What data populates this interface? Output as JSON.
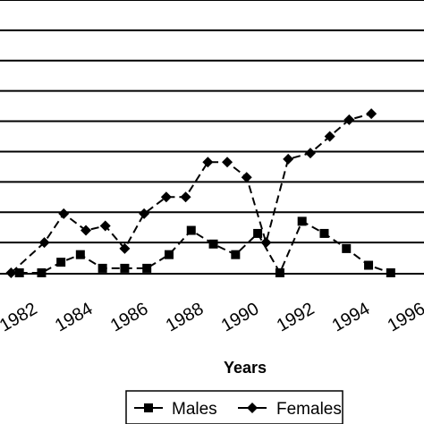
{
  "chart_data": {
    "type": "line",
    "xlabel": "Years",
    "ylabel": "",
    "title": "",
    "grid": true,
    "legend_position": "bottom",
    "x_tick_labels": [
      "1982",
      "1984",
      "1986",
      "1988",
      "1990",
      "1992",
      "1994",
      "1996"
    ],
    "xlim": [
      1981.3,
      1996.6
    ],
    "ylim": [
      0,
      18
    ],
    "series": [
      {
        "name": "Males",
        "marker": "square",
        "x": [
          1982,
          1982.8,
          1983.5,
          1984.2,
          1985,
          1985.8,
          1986.6,
          1987.4,
          1988.2,
          1989,
          1989.8,
          1990.6,
          1991.4,
          1992.2,
          1993,
          1993.8,
          1994.6,
          1995.4
        ],
        "values": [
          0,
          0,
          0.7,
          1.2,
          0.3,
          0.3,
          0.3,
          1.2,
          2.8,
          1.9,
          1.2,
          2.6,
          0,
          3.4,
          2.6,
          1.6,
          0.5,
          0
        ]
      },
      {
        "name": "Females",
        "marker": "diamond",
        "x": [
          1981.7,
          1982.9,
          1983.6,
          1984.4,
          1985.1,
          1985.8,
          1986.5,
          1987.3,
          1988,
          1988.8,
          1989.5,
          1990.2,
          1990.9,
          1991.7,
          1992.5,
          1993.2,
          1993.9,
          1994.7
        ],
        "values": [
          0,
          2,
          3.9,
          2.8,
          3.1,
          1.6,
          3.9,
          5.0,
          5.0,
          7.3,
          7.3,
          6.3,
          2,
          7.5,
          7.9,
          9.0,
          10.1,
          10.5
        ]
      }
    ]
  }
}
